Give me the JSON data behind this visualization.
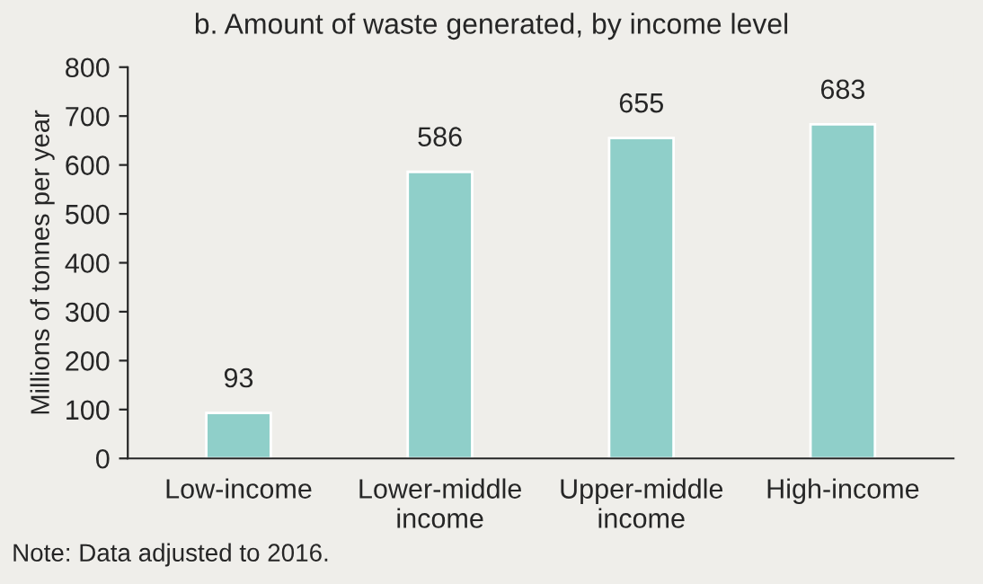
{
  "chart_data": {
    "type": "bar",
    "title": "b. Amount of waste generated, by income level",
    "ylabel": "Millions of tonnes per year",
    "categories": [
      "Low-income",
      "Lower-middle\nincome",
      "Upper-middle\nincome",
      "High-income"
    ],
    "values": [
      93,
      586,
      655,
      683
    ],
    "color": "#8fcfc9",
    "data_labels": true,
    "ylim": [
      0,
      800
    ],
    "yticks": [
      0,
      100,
      200,
      300,
      400,
      500,
      600,
      700,
      800
    ],
    "grid": false,
    "legend": false,
    "annotations": [
      "Note: Data adjusted to 2016."
    ]
  }
}
